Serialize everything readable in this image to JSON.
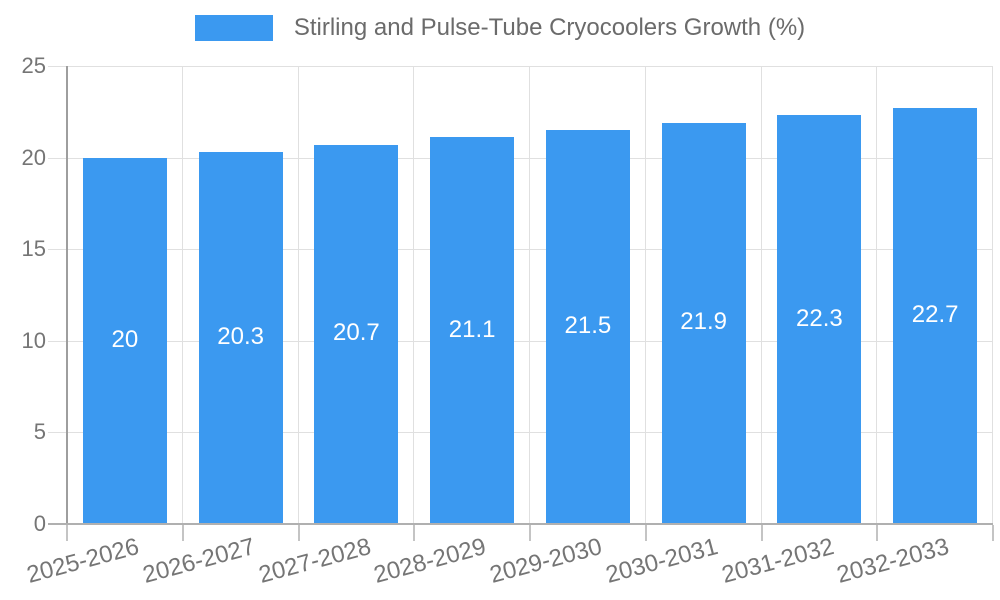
{
  "legend": {
    "label": "Stirling and Pulse-Tube Cryocoolers Growth (%)",
    "swatch_color": "#3B99F0"
  },
  "chart_data": {
    "type": "bar",
    "title": "Stirling and Pulse-Tube Cryocoolers Growth (%)",
    "categories": [
      "2025-2026",
      "2026-2027",
      "2027-2028",
      "2028-2029",
      "2029-2030",
      "2030-2031",
      "2031-2032",
      "2032-2033"
    ],
    "values": [
      20,
      20.3,
      20.7,
      21.1,
      21.5,
      21.9,
      22.3,
      22.7
    ],
    "bar_labels": [
      "20",
      "20.3",
      "20.7",
      "21.1",
      "21.5",
      "21.9",
      "22.3",
      "22.7"
    ],
    "xlabel": "",
    "ylabel": "",
    "ylim": [
      0,
      25
    ],
    "yticks": [
      0,
      5,
      10,
      15,
      20,
      25
    ],
    "grid": true,
    "legend_position": "top-center",
    "colors": {
      "bar": "#3B99F0",
      "bar_label_text": "#ffffff",
      "axis_text": "#757575",
      "legend_text": "#6b6b6b",
      "gridline": "#e0e0e0",
      "axis_line_y": "#9e9e9e",
      "axis_line_x": "#b0b0b0",
      "tick": "#c4c4c4",
      "background": "#ffffff"
    }
  }
}
